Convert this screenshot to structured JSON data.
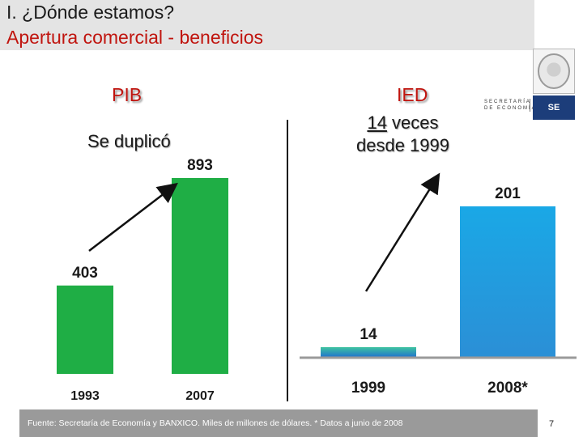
{
  "slide": {
    "title_line1": "I.   ¿Dónde estamos?",
    "title_line2": "Apertura comercial - beneficios",
    "page_number": "7",
    "footer": "Fuente: Secretaría de Economía y BANXICO. Miles de millones de dólares. * Datos a junio de 2008",
    "logo": {
      "secretaria_line1": "SECRETARÍA",
      "secretaria_line2": "DE ECONOMÍA",
      "badge": "SE"
    }
  },
  "pib": {
    "heading": "PIB",
    "subtitle": "Se duplicó"
  },
  "ied": {
    "heading": "IED",
    "subtitle_number": "14",
    "subtitle_rest": " veces",
    "subtitle_line2": "desde 1999"
  },
  "colors": {
    "title_red": "#c0140e",
    "pib_green": "#1fae45",
    "ied_blue": "#1f9de0"
  },
  "chart_data": [
    {
      "type": "bar",
      "title": "PIB",
      "categories": [
        "1993",
        "2007"
      ],
      "values": [
        403,
        893
      ],
      "data_labels": [
        "403",
        "893"
      ],
      "color": "#1fae45",
      "ylim": [
        0,
        1000
      ],
      "grid": false,
      "annotation": "arrow-up"
    },
    {
      "type": "bar",
      "title": "IED",
      "categories": [
        "1999",
        "2008*"
      ],
      "values": [
        14,
        201
      ],
      "data_labels": [
        "14",
        "201"
      ],
      "color": "#1f9de0",
      "ylim": [
        0,
        215
      ],
      "grid": false,
      "annotation": "arrow-up"
    }
  ]
}
